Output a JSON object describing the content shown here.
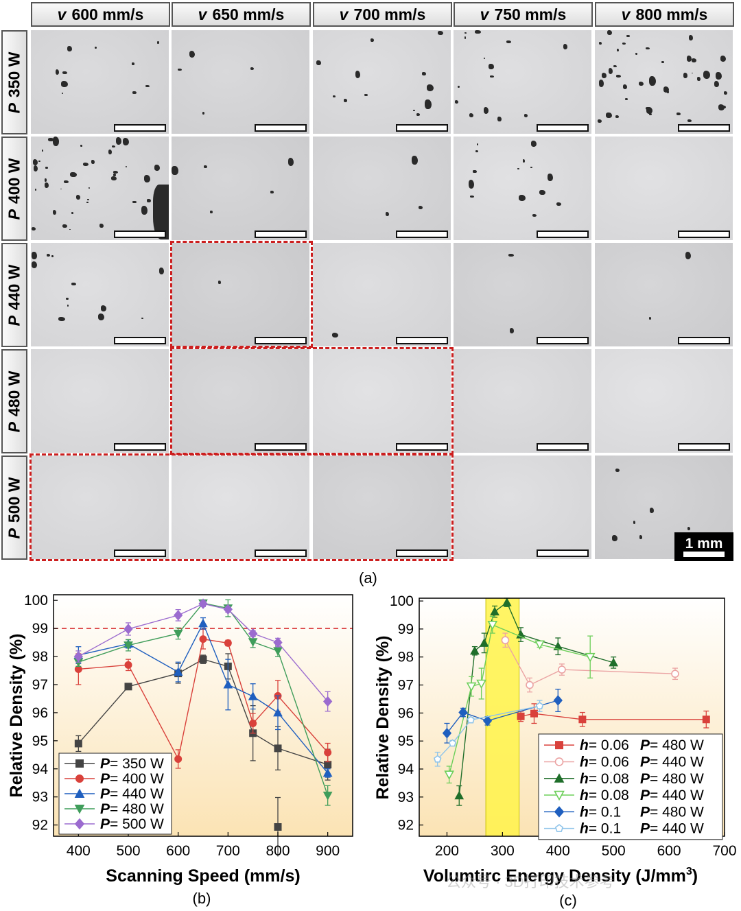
{
  "micrographs": {
    "columns": [
      {
        "var": "v",
        "label": "600 mm/s"
      },
      {
        "var": "v",
        "label": "650 mm/s"
      },
      {
        "var": "v",
        "label": "700 mm/s"
      },
      {
        "var": "v",
        "label": "750 mm/s"
      },
      {
        "var": "v",
        "label": "800 mm/s"
      }
    ],
    "rows": [
      {
        "var": "P",
        "label": "350 W"
      },
      {
        "var": "P",
        "label": "400 W"
      },
      {
        "var": "P",
        "label": "440 W"
      },
      {
        "var": "P",
        "label": "480 W"
      },
      {
        "var": "P",
        "label": "500 W"
      }
    ],
    "scale_bar_label": "1 mm",
    "highlight_color": "#cc1f1f",
    "panel_label": "(a)"
  },
  "chart_data": [
    {
      "type": "line",
      "panel_label": "(b)",
      "xlabel": "Scanning Speed (mm/s)",
      "ylabel": "Relative Density (%)",
      "xlim": [
        350,
        950
      ],
      "ylim": [
        91.6,
        100.2
      ],
      "xticks": [
        400,
        500,
        600,
        700,
        800,
        900
      ],
      "yticks": [
        92,
        93,
        94,
        95,
        96,
        97,
        98,
        99,
        100
      ],
      "reference_line": {
        "y": 99,
        "color": "#d62728",
        "style": "dashed"
      },
      "background": "gradient white to light orange",
      "legend_position": "bottom-left",
      "series": [
        {
          "var": "P",
          "name": "= 350 W",
          "color": "#444444",
          "marker": "square",
          "x": [
            400,
            500,
            600,
            650,
            700,
            750,
            800,
            900
          ],
          "y": [
            94.9,
            96.93,
            97.4,
            97.9,
            97.65,
            95.27,
            94.73,
            94.15
          ],
          "err": [
            0.28,
            0.1,
            0.35,
            0.15,
            0.45,
            0.98,
            0.77,
            0.55
          ],
          "extra_points": [
            {
              "x": 800,
              "y": 91.93,
              "err": 1.05
            }
          ]
        },
        {
          "var": "P",
          "name": "= 400 W",
          "color": "#d9413b",
          "marker": "circle",
          "x": [
            400,
            500,
            600,
            650,
            700,
            750,
            800,
            900
          ],
          "y": [
            97.55,
            97.7,
            94.35,
            98.62,
            98.48,
            95.62,
            96.6,
            94.58
          ],
          "err": [
            0.55,
            0.2,
            0.33,
            0.35,
            0.1,
            0.35,
            0.55,
            0.33
          ]
        },
        {
          "var": "P",
          "name": "= 440 W",
          "color": "#1f5fbf",
          "marker": "triangle-up",
          "x": [
            400,
            500,
            600,
            650,
            700,
            750,
            800,
            900
          ],
          "y": [
            98.05,
            98.45,
            97.45,
            99.18,
            97.0,
            96.58,
            96.0,
            93.85
          ],
          "err": [
            0.3,
            0.15,
            0.35,
            0.2,
            0.9,
            0.45,
            0.6,
            0.15
          ]
        },
        {
          "var": "P",
          "name": "= 480 W",
          "color": "#3f9d5a",
          "marker": "triangle-down",
          "x": [
            400,
            500,
            600,
            650,
            700,
            750,
            800,
            900
          ],
          "y": [
            97.8,
            98.4,
            98.82,
            99.9,
            99.72,
            98.52,
            98.2,
            93.05
          ],
          "err": [
            0.15,
            0.2,
            0.2,
            0.1,
            0.3,
            0.2,
            0.2,
            0.35
          ]
        },
        {
          "var": "P",
          "name": "= 500 W",
          "color": "#9b6bcf",
          "marker": "diamond",
          "x": [
            400,
            500,
            600,
            650,
            700,
            750,
            800,
            900
          ],
          "y": [
            98.0,
            98.98,
            99.47,
            99.88,
            99.68,
            98.82,
            98.5,
            96.4
          ],
          "err": [
            0.2,
            0.22,
            0.2,
            0.1,
            0.1,
            0.1,
            0.15,
            0.35
          ]
        }
      ]
    },
    {
      "type": "line",
      "panel_label": "(c)",
      "xlabel": "Volumtirc Energy Density (J/mm",
      "xlabel_superscript": "3",
      "xlabel_suffix": ")",
      "ylabel": "Relative Density (%)",
      "xlim": [
        150,
        700
      ],
      "ylim": [
        91.6,
        100.1
      ],
      "xticks": [
        200,
        300,
        400,
        500,
        600,
        700
      ],
      "yticks": [
        92,
        93,
        94,
        95,
        96,
        97,
        98,
        99,
        100
      ],
      "highlight_band": {
        "x": [
          270,
          330
        ],
        "color": "#fff34a"
      },
      "background": "gradient white to light orange",
      "legend_position": "bottom-right",
      "series": [
        {
          "h": "= 0.06",
          "P": "= 480 W",
          "color": "#d9413b",
          "marker": "square",
          "filled": true,
          "x": [
            333,
            357,
            444,
            667
          ],
          "y": [
            95.88,
            95.98,
            95.77,
            95.77
          ],
          "err": [
            0.18,
            0.35,
            0.25,
            0.3
          ]
        },
        {
          "h": "= 0.06",
          "P": "= 440 W",
          "color": "#eba3a3",
          "marker": "circle",
          "filled": false,
          "x": [
            305,
            349,
            407,
            611
          ],
          "y": [
            98.6,
            97.0,
            97.55,
            97.4
          ],
          "err": [
            0.25,
            0.25,
            0.2,
            0.2
          ]
        },
        {
          "h": "= 0.08",
          "P": "= 480 W",
          "color": "#1f6e2a",
          "marker": "triangle-up",
          "filled": true,
          "x": [
            222,
            250,
            267,
            286,
            308,
            333,
            400,
            500
          ],
          "y": [
            93.05,
            98.22,
            98.5,
            99.62,
            99.95,
            98.8,
            98.38,
            97.8
          ],
          "err": [
            0.35,
            0.15,
            0.35,
            0.2,
            0.15,
            0.25,
            0.3,
            0.2
          ]
        },
        {
          "h": "= 0.08",
          "P": "= 440 W",
          "color": "#6dcf5a",
          "marker": "triangle-down",
          "filled": false,
          "x": [
            204,
            244,
            262,
            282,
            367,
            458
          ],
          "y": [
            93.8,
            96.95,
            97.05,
            99.15,
            98.45,
            98.0
          ],
          "err": [
            0.3,
            0.35,
            0.55,
            0.3,
            0.1,
            0.75
          ]
        },
        {
          "h": "= 0.1",
          "P": "= 480 W",
          "color": "#1f5fbf",
          "marker": "diamond",
          "filled": true,
          "x": [
            200,
            229,
            273,
            400
          ],
          "y": [
            95.28,
            96.02,
            95.72,
            96.45
          ],
          "err": [
            0.35,
            0.15,
            0.15,
            0.4
          ]
        },
        {
          "h": "= 0.1",
          "P": "= 440 W",
          "color": "#8fc4ea",
          "marker": "pentagon",
          "filled": false,
          "x": [
            183,
            210,
            243,
            367
          ],
          "y": [
            94.35,
            94.92,
            95.75,
            96.25
          ],
          "err": [
            0.25,
            0.1,
            0.1,
            0.2
          ]
        }
      ]
    }
  ],
  "watermark": "公众号 · 3D打印技术参考",
  "colors": {
    "highlight_box": "#cc1f1f",
    "band": "#fff34a"
  }
}
